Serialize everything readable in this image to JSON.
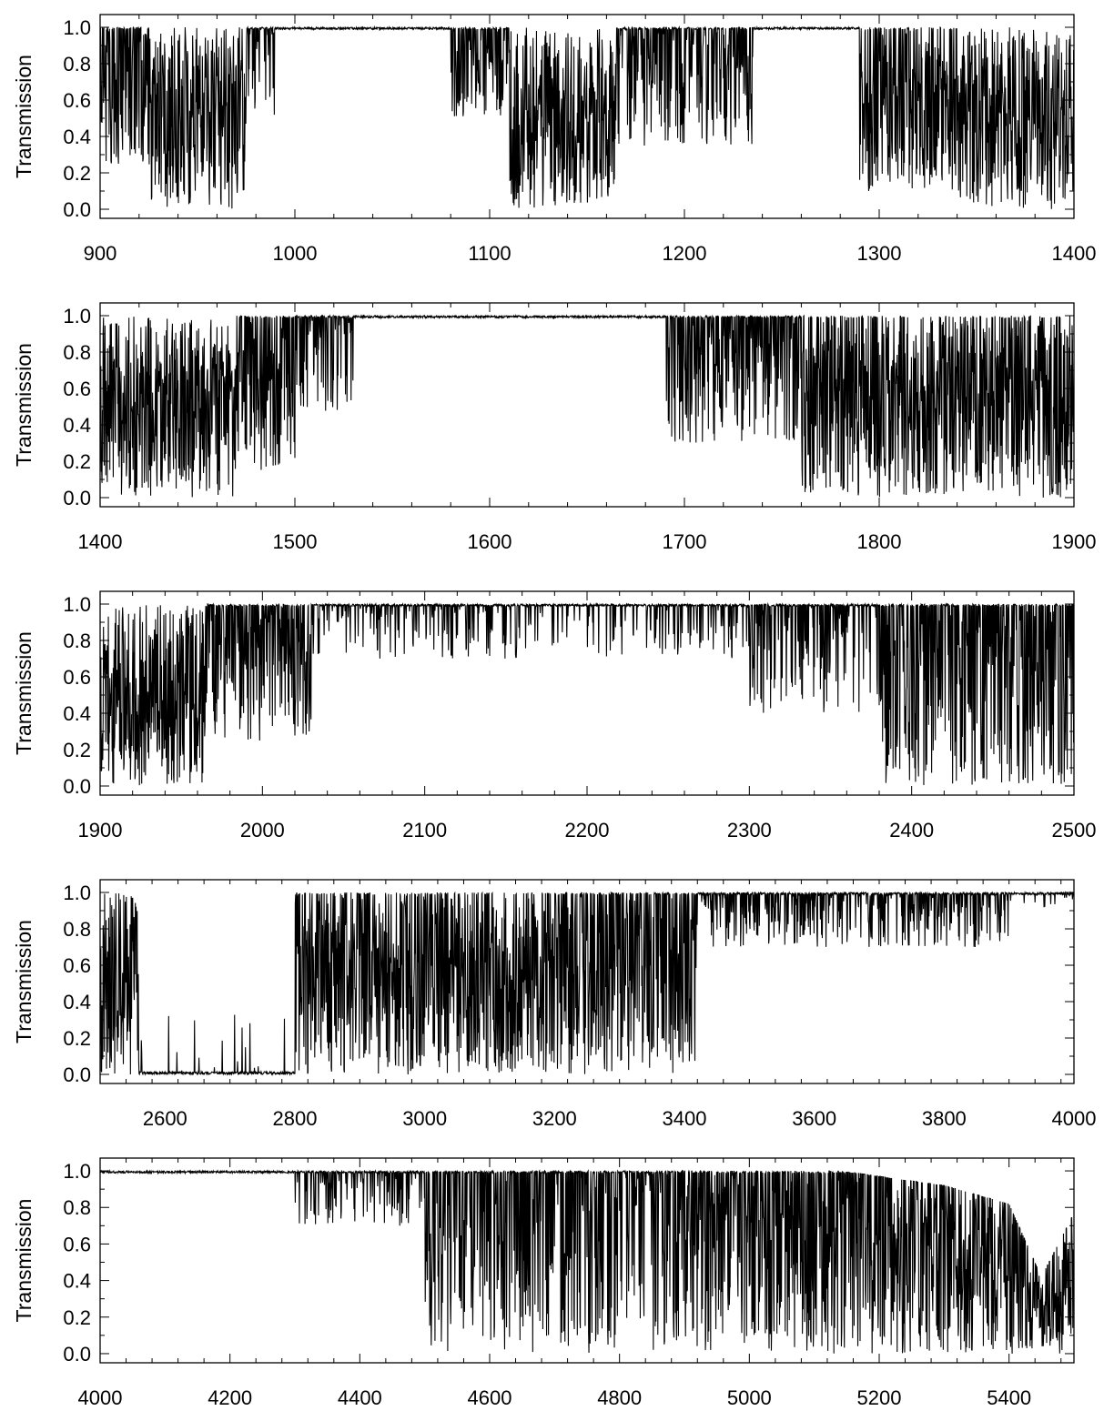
{
  "chart_data": [
    {
      "type": "line",
      "ylabel": "Transmission",
      "xlim": [
        900,
        1400
      ],
      "ylim": [
        -0.05,
        1.07
      ],
      "x_ticks": [
        900,
        1000,
        1100,
        1200,
        1300,
        1400
      ],
      "y_ticks": [
        "0.0",
        "0.2",
        "0.4",
        "0.6",
        "0.8",
        "1.0"
      ],
      "bands": [
        {
          "start": 900,
          "end": 925,
          "density": 0.7,
          "depth": 0.75
        },
        {
          "start": 925,
          "end": 975,
          "density": 1.0,
          "depth": 1.0
        },
        {
          "start": 975,
          "end": 990,
          "density": 0.4,
          "depth": 0.5
        },
        {
          "start": 1080,
          "end": 1110,
          "density": 0.5,
          "depth": 0.5
        },
        {
          "start": 1110,
          "end": 1165,
          "density": 1.0,
          "depth": 1.0
        },
        {
          "start": 1165,
          "end": 1235,
          "density": 0.55,
          "depth": 0.65
        },
        {
          "start": 1290,
          "end": 1340,
          "density": 0.75,
          "depth": 0.9
        },
        {
          "start": 1340,
          "end": 1400,
          "density": 1.0,
          "depth": 1.0
        }
      ]
    },
    {
      "type": "line",
      "ylabel": "Transmission",
      "xlim": [
        1400,
        1900
      ],
      "ylim": [
        -0.05,
        1.07
      ],
      "x_ticks": [
        1400,
        1500,
        1600,
        1700,
        1800,
        1900
      ],
      "y_ticks": [
        "0.0",
        "0.2",
        "0.4",
        "0.6",
        "0.8",
        "1.0"
      ],
      "bands": [
        {
          "start": 1400,
          "end": 1470,
          "density": 1.0,
          "depth": 1.0
        },
        {
          "start": 1470,
          "end": 1500,
          "density": 0.7,
          "depth": 0.85
        },
        {
          "start": 1500,
          "end": 1530,
          "density": 0.4,
          "depth": 0.55
        },
        {
          "start": 1690,
          "end": 1760,
          "density": 0.45,
          "depth": 0.7
        },
        {
          "start": 1760,
          "end": 1820,
          "density": 0.85,
          "depth": 1.0
        },
        {
          "start": 1820,
          "end": 1900,
          "density": 0.9,
          "depth": 1.0
        }
      ]
    },
    {
      "type": "line",
      "ylabel": "Transmission",
      "xlim": [
        1900,
        2500
      ],
      "ylim": [
        -0.05,
        1.07
      ],
      "x_ticks": [
        1900,
        2000,
        2100,
        2200,
        2300,
        2400,
        2500
      ],
      "y_ticks": [
        "0.0",
        "0.2",
        "0.4",
        "0.6",
        "0.8",
        "1.0"
      ],
      "bands": [
        {
          "start": 1900,
          "end": 1965,
          "density": 1.0,
          "depth": 1.0
        },
        {
          "start": 1965,
          "end": 2030,
          "density": 0.6,
          "depth": 0.75
        },
        {
          "start": 2030,
          "end": 2300,
          "density": 0.18,
          "depth": 0.3
        },
        {
          "start": 2300,
          "end": 2380,
          "density": 0.35,
          "depth": 0.6
        },
        {
          "start": 2380,
          "end": 2500,
          "density": 0.55,
          "depth": 1.0
        }
      ]
    },
    {
      "type": "line",
      "ylabel": "Transmission",
      "xlim": [
        2500,
        4000
      ],
      "ylim": [
        -0.05,
        1.07
      ],
      "x_ticks": [
        2600,
        2800,
        3000,
        3200,
        3400,
        3600,
        3800,
        4000
      ],
      "y_ticks": [
        "0.0",
        "0.2",
        "0.4",
        "0.6",
        "0.8",
        "1.0"
      ],
      "bands": [
        {
          "start": 2500,
          "end": 2560,
          "density": 1.0,
          "depth": 1.0
        },
        {
          "start": 2560,
          "end": 2800,
          "density": 1.0,
          "depth": 1.0
        },
        {
          "start": 2800,
          "end": 3180,
          "density": 0.85,
          "depth": 1.0
        },
        {
          "start": 3180,
          "end": 3420,
          "density": 0.7,
          "depth": 1.0
        },
        {
          "start": 3420,
          "end": 3900,
          "density": 0.3,
          "depth": 0.3
        },
        {
          "start": 3900,
          "end": 4000,
          "density": 0.1,
          "depth": 0.1
        }
      ],
      "floor_region": {
        "start": 2560,
        "end": 2800,
        "level": 0.0
      }
    },
    {
      "type": "line",
      "ylabel": "Transmission",
      "xlim": [
        4000,
        5500
      ],
      "ylim": [
        -0.05,
        1.07
      ],
      "x_ticks": [
        4000,
        4200,
        4400,
        4600,
        4800,
        5000,
        5200,
        5400
      ],
      "y_ticks": [
        "0.0",
        "0.2",
        "0.4",
        "0.6",
        "0.8",
        "1.0"
      ],
      "bands": [
        {
          "start": 4300,
          "end": 4500,
          "density": 0.25,
          "depth": 0.3
        },
        {
          "start": 4500,
          "end": 4850,
          "density": 0.45,
          "depth": 1.0
        },
        {
          "start": 4850,
          "end": 5200,
          "density": 0.6,
          "depth": 1.0
        },
        {
          "start": 5200,
          "end": 5500,
          "density": 0.8,
          "depth": 1.0
        }
      ],
      "envelope": [
        [
          5100,
          1.0
        ],
        [
          5200,
          0.95
        ],
        [
          5300,
          0.9
        ],
        [
          5400,
          0.8
        ],
        [
          5450,
          0.4
        ],
        [
          5500,
          0.75
        ]
      ]
    }
  ]
}
